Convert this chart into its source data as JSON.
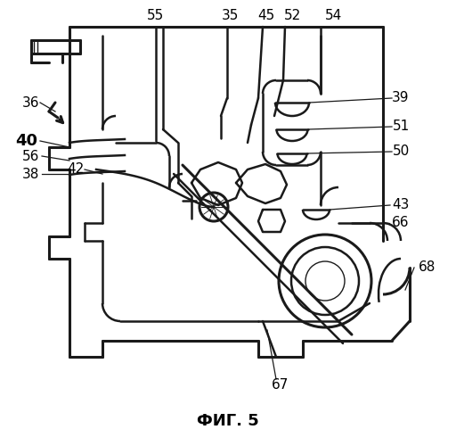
{
  "title": "ФИГ. 5",
  "title_fontsize": 13,
  "title_fontweight": "bold",
  "background_color": "#ffffff",
  "line_color": "#1a1a1a",
  "lw_main": 1.8,
  "lw_thin": 1.0,
  "lw_thick": 2.2
}
